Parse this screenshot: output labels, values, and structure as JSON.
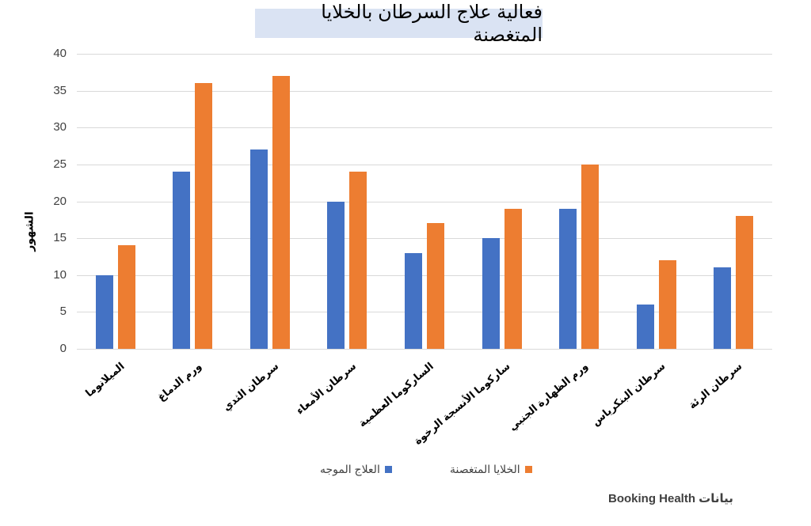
{
  "chart_data": {
    "type": "bar",
    "title": "فعالية علاج السرطان بالخلايا المتغصنة",
    "xlabel": "",
    "ylabel": "الشهور",
    "ylim": [
      0,
      40
    ],
    "yticks": [
      0,
      5,
      10,
      15,
      20,
      25,
      30,
      35,
      40
    ],
    "grid": true,
    "legend_position": "bottom",
    "categories": [
      "الميلانوما",
      "ورم الدماغ",
      "سرطان الثدي",
      "سرطان الأمعاء",
      "الساركوما العظمية",
      "ساركوما الأنسجة الرخوة",
      "ورم الظهارة الجنبي",
      "سرطان البنكرياس",
      "سرطان الرئة"
    ],
    "series": [
      {
        "name": "العلاج الموجه",
        "color": "#4472c4",
        "values": [
          10,
          24,
          27,
          20,
          13,
          15,
          19,
          6,
          11
        ]
      },
      {
        "name": "الخلايا المتغصنة",
        "color": "#ed7d31",
        "values": [
          14,
          36,
          37,
          24,
          17,
          19,
          25,
          12,
          18
        ]
      }
    ]
  },
  "title": "فعالية علاج السرطان بالخلايا المتغصنة",
  "y_axis_label": "الشهور",
  "legend": [
    {
      "label": "العلاج الموجه",
      "color": "#4472c4"
    },
    {
      "label": "الخلايا المتغصنة",
      "color": "#ed7d31"
    }
  ],
  "source": "بيانات Booking Health"
}
